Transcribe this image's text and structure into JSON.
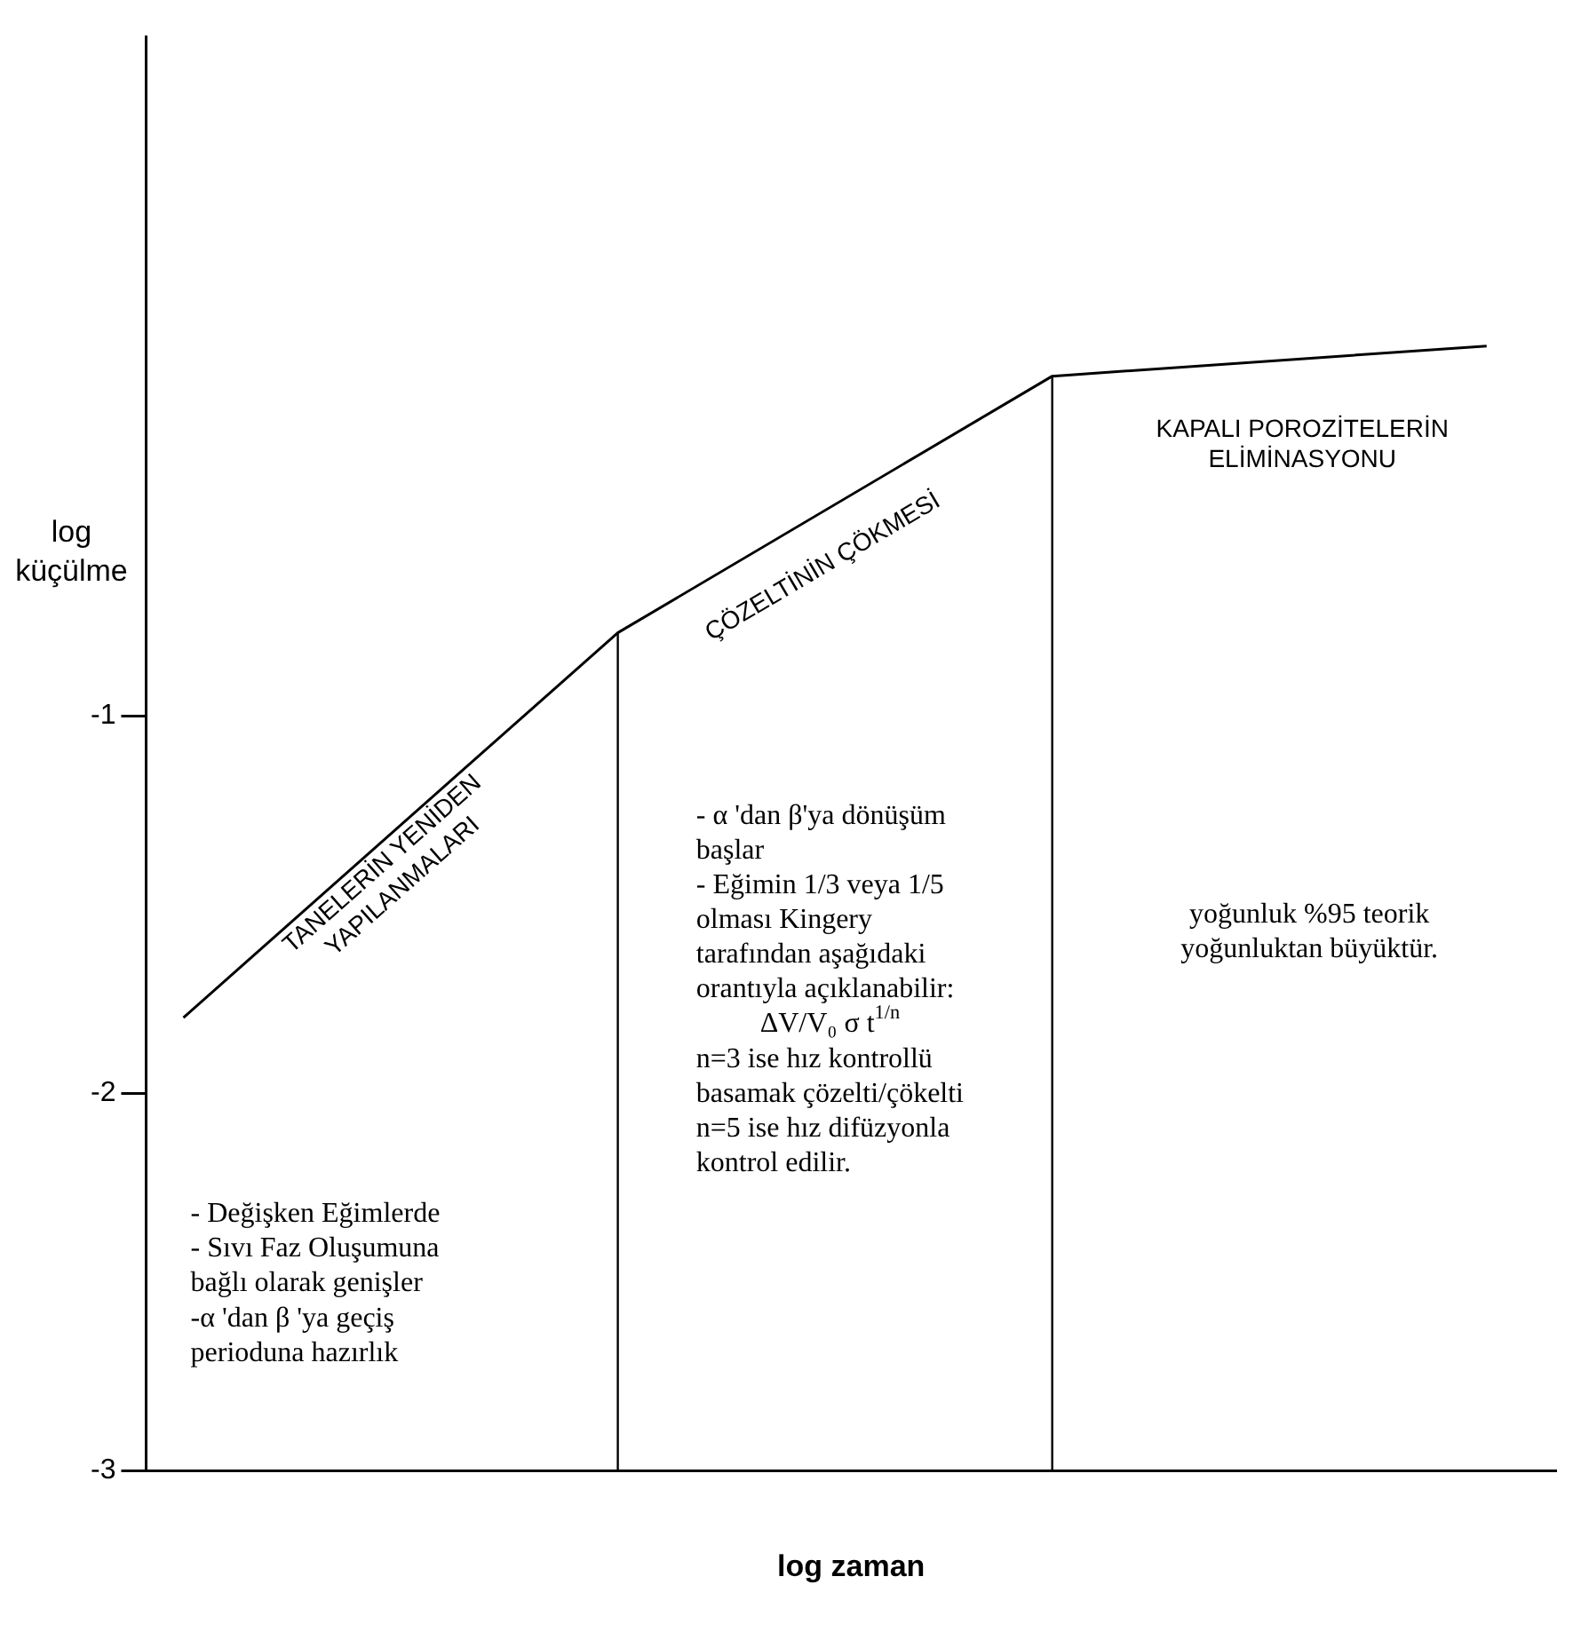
{
  "chart_data": {
    "type": "line",
    "xlabel": "log zaman",
    "ylabel": "log\nküçülme",
    "categories": [
      null,
      null,
      null,
      null
    ],
    "ylim": [
      -3,
      0.8
    ],
    "yticks": [
      -3,
      -2,
      -1
    ],
    "grid": false,
    "legend": false,
    "marker": "none",
    "series": [
      {
        "color": "#000000",
        "values": [
          -1.8,
          -0.78,
          -0.1,
          -0.02
        ]
      }
    ],
    "annotations": [
      "TANELERİN YENİDEN\nYAPILANMALARI",
      "ÇÖZELTİNİN ÇÖKMESİ",
      "KAPALI POROZİTELERİN\nELİMİNASYONU",
      "- Değişken Eğimlerde\n- Sıvı Faz Oluşumuna\nbağlı olarak genişler\n-α 'dan β 'ya geçiş\nperioduna hazırlık",
      "- α 'dan β'ya dönüşüm\nbaşlar\n- Eğimin 1/3 veya 1/5\nolması Kingery\ntarafından aşağıdaki\norantıyla açıklanabilir:\nΔV/V₀ σ t$^{1/n}$\nn=3 ise hız kontrollü\nbasamak çözelti/çökelti\nn=5 ise hız difüzyonla\nkontrol edilir.",
      "yoğunluk %95 teorik\nyoğunluktan büyüktür."
    ]
  }
}
